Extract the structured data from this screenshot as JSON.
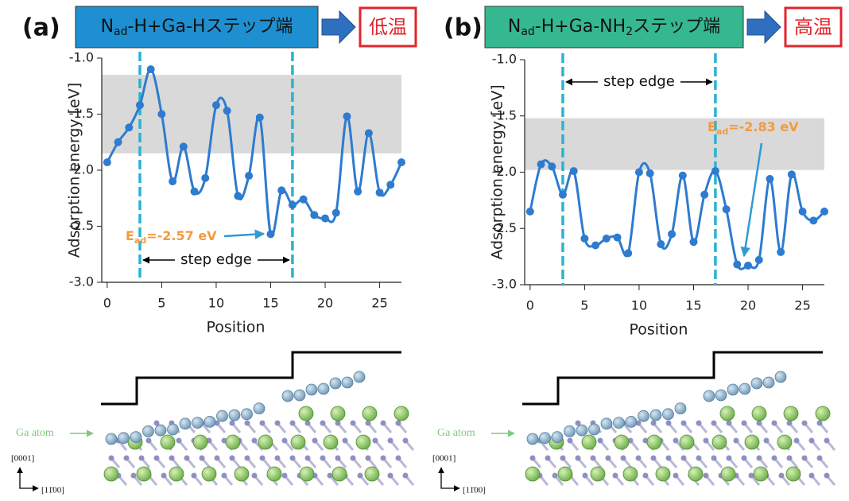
{
  "chart_data": [
    {
      "type": "line",
      "panel_label": "(a)",
      "title_parts": [
        {
          "text": "N"
        },
        {
          "text": "ad",
          "sub": true
        },
        {
          "text": "-H+Ga-Hステップ端"
        }
      ],
      "title_color": "#1e8fd0",
      "condition": "低温",
      "x": [
        0,
        1,
        2,
        3,
        4,
        5,
        6,
        7,
        8,
        9,
        10,
        11,
        12,
        13,
        14,
        15,
        16,
        17,
        18,
        19,
        20,
        21,
        22,
        23,
        24,
        25,
        26,
        27
      ],
      "series": [
        {
          "color": "#2e7bcf",
          "values": [
            -1.93,
            -1.75,
            -1.62,
            -1.42,
            -1.1,
            -1.5,
            -2.1,
            -1.79,
            -2.19,
            -2.07,
            -1.42,
            -1.47,
            -2.23,
            -2.05,
            -1.53,
            -2.57,
            -2.18,
            -2.31,
            -2.26,
            -2.4,
            -2.43,
            -2.38,
            -1.52,
            -2.19,
            -1.67,
            -2.2,
            -2.13,
            -1.93
          ]
        }
      ],
      "xlim": [
        -0.5,
        27
      ],
      "xticks": [
        0,
        5,
        10,
        15,
        20,
        25
      ],
      "ylim": [
        -3,
        -1
      ],
      "yticks": [
        {
          "value": -1,
          "label": "-1.0"
        },
        -1.5,
        {
          "value": -2,
          "label": "-2.0"
        },
        -2.5,
        {
          "value": -3,
          "label": "-3.0"
        }
      ],
      "xlabel": "Position",
      "ylabel": "Adsorption energy [eV]",
      "band": [
        -1.85,
        -1.15
      ],
      "step_edges": [
        3,
        17
      ],
      "step_label": "step edge",
      "annotation_parts": [
        {
          "text": "E"
        },
        {
          "text": "ad",
          "sub": true
        },
        {
          "text": "=-2.57 eV"
        }
      ]
    },
    {
      "type": "line",
      "panel_label": "(b)",
      "title_parts": [
        {
          "text": "N"
        },
        {
          "text": "ad",
          "sub": true
        },
        {
          "text": "-H+Ga-NH"
        },
        {
          "text": "2",
          "sub": true
        },
        {
          "text": "ステップ端"
        }
      ],
      "title_color": "#35b88f",
      "condition": "高温",
      "x": [
        0,
        1,
        2,
        3,
        4,
        5,
        6,
        7,
        8,
        9,
        10,
        11,
        12,
        13,
        14,
        15,
        16,
        17,
        18,
        19,
        20,
        21,
        22,
        23,
        24,
        25,
        26,
        27
      ],
      "series": [
        {
          "color": "#2e7bcf",
          "values": [
            -2.35,
            -1.93,
            -1.95,
            -2.2,
            -1.99,
            -2.59,
            -2.65,
            -2.59,
            -2.58,
            -2.72,
            -2.0,
            -2.01,
            -2.64,
            -2.55,
            -2.03,
            -2.62,
            -2.2,
            -1.99,
            -2.33,
            -2.82,
            -2.83,
            -2.78,
            -2.06,
            -2.71,
            -2.02,
            -2.35,
            -2.43,
            -2.35
          ]
        }
      ],
      "xlim": [
        -0.5,
        27
      ],
      "xticks": [
        0,
        5,
        10,
        15,
        20,
        25
      ],
      "ylim": [
        -3,
        -1
      ],
      "yticks": [
        {
          "value": -1,
          "label": "-1.0"
        },
        -1.5,
        {
          "value": -2,
          "label": "-2.0"
        },
        -2.5,
        {
          "value": -3,
          "label": "-3.0"
        }
      ],
      "xlabel": "Position",
      "ylabel": "Adsorption energy [eV]",
      "band": [
        -1.98,
        -1.52
      ],
      "step_edges": [
        3,
        17
      ],
      "step_label": "step edge",
      "annotation_parts": [
        {
          "text": "E"
        },
        {
          "text": "ad",
          "sub": true
        },
        {
          "text": "=-2.83 eV"
        }
      ]
    }
  ],
  "structures": [
    {
      "atom_label": "Ga atom",
      "up_axis": "[0001]",
      "right_axis": "[11̄00]"
    },
    {
      "atom_label": "Ga atom",
      "up_axis": "[0001]",
      "right_axis": "[11̄00]"
    }
  ]
}
